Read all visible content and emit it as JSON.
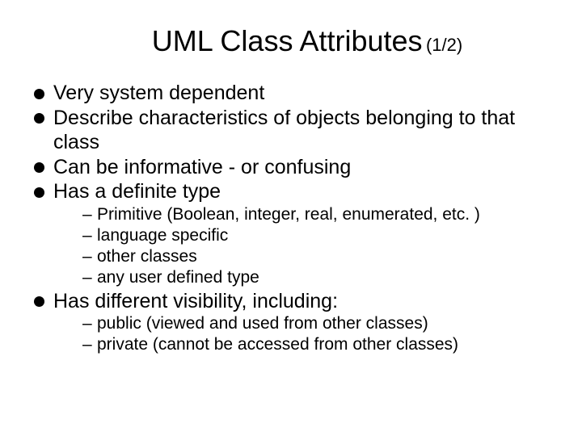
{
  "title": {
    "main": "UML Class Attributes",
    "suffix": "(1/2)",
    "title_fontsize": 36,
    "suffix_fontsize": 22,
    "color": "#000000"
  },
  "bullets": [
    {
      "text": "Very system dependent"
    },
    {
      "text": "Describe characteristics of objects belonging to that class"
    },
    {
      "text": "Can be informative - or confusing"
    },
    {
      "text": "Has a definite type",
      "sub": [
        "Primitive (Boolean, integer, real, enumerated, etc. )",
        "language specific",
        "other classes",
        "any user defined type"
      ]
    },
    {
      "text": "Has different visibility, including:",
      "sub": [
        "public (viewed and used from other classes)",
        "private (cannot be accessed from other classes)"
      ]
    }
  ],
  "style": {
    "background": "#ffffff",
    "text_color": "#000000",
    "bullet_fontsize": 25,
    "sub_fontsize": 21,
    "bullet_marker": "filled-circle",
    "sub_marker": "en-dash",
    "font_family": "Arial"
  }
}
